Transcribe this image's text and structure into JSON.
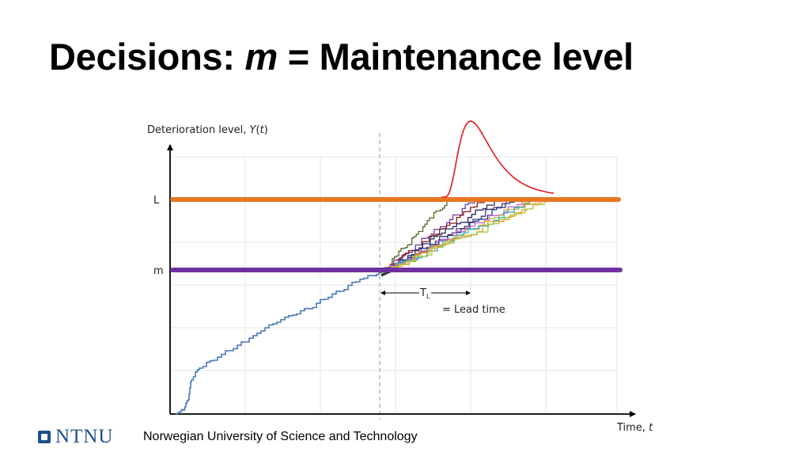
{
  "slide": {
    "title_prefix": "Decisions: ",
    "title_var": "m",
    "title_suffix": " = Maintenance level"
  },
  "diagram": {
    "y_axis_label_text": "Deterioration level, ",
    "y_axis_label_var": "Y",
    "y_axis_label_paren_open": "(",
    "y_axis_label_t": "t",
    "y_axis_label_paren_close": ")",
    "x_axis_label_text": "Time, ",
    "x_axis_label_var": "t",
    "L_label": "L",
    "m_label": "m",
    "lead_time_symbol": "T",
    "lead_time_subscript": "L",
    "lead_time_caption": "= Lead time",
    "colors": {
      "L_line": "#e87722",
      "m_line": "#7030a0",
      "history_path": "#4a7ab5",
      "distribution_curve": "#e41a1c",
      "axes": "#000000",
      "grid": "#e6e6e6",
      "dashed_now": "#aaaaaa"
    },
    "forecast_path_colors": [
      "#556b2f",
      "#6a3d9a",
      "#8b1a1a",
      "#2b2b6b",
      "#4a3b6b",
      "#1f3b8a",
      "#c26ad6",
      "#d4aa40",
      "#2fb3c9",
      "#f0a030",
      "#a4c639"
    ]
  },
  "footer": {
    "logo_text": "NTNU",
    "institution": "Norwegian University of Science and Technology"
  }
}
